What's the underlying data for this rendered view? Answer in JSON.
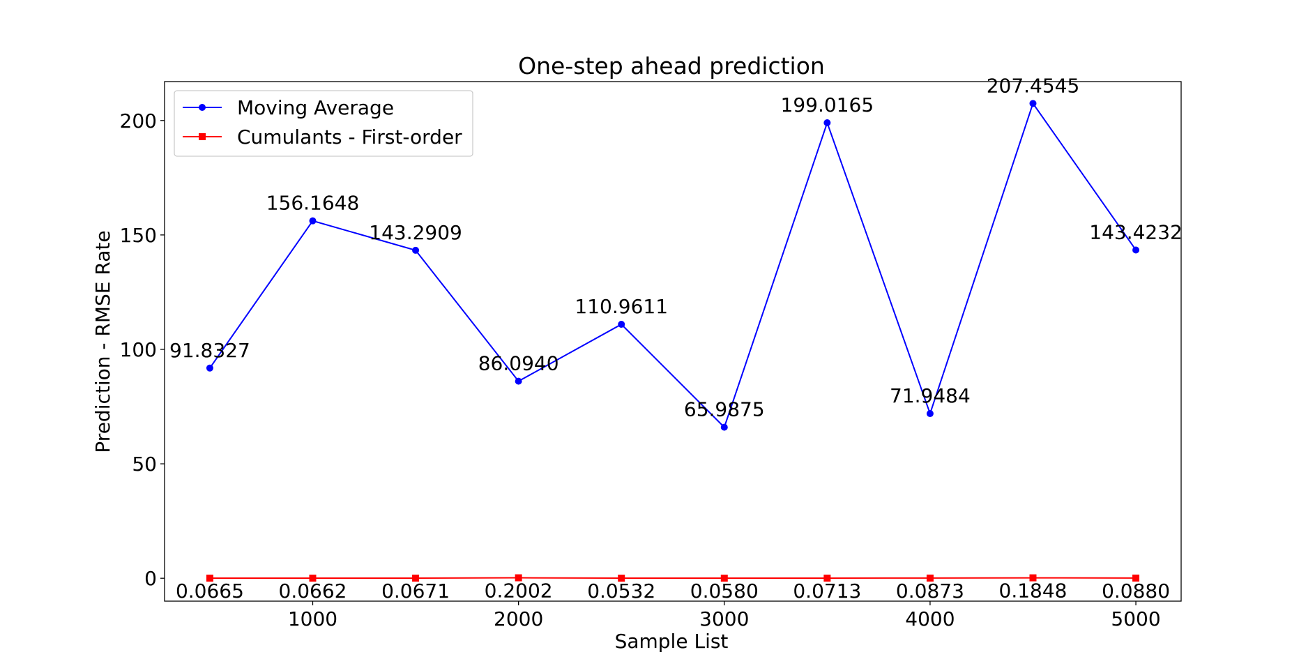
{
  "chart_data": {
    "type": "line",
    "title": "One-step ahead prediction",
    "xlabel": "Sample List",
    "ylabel": "Prediction - RMSE Rate",
    "x": [
      500,
      1000,
      1500,
      2000,
      2500,
      3000,
      3500,
      4000,
      4500,
      5000
    ],
    "xlim": [
      280,
      5220
    ],
    "ylim": [
      -10,
      217
    ],
    "x_ticks": [
      1000,
      2000,
      3000,
      4000,
      5000
    ],
    "y_ticks": [
      0,
      50,
      100,
      150,
      200
    ],
    "grid": false,
    "legend_position": "top-left",
    "series": [
      {
        "name": "Moving Average",
        "color": "#0000ff",
        "marker": "circle",
        "values": [
          91.8327,
          156.1648,
          143.2909,
          86.094,
          110.9611,
          65.9875,
          199.0165,
          71.9484,
          207.4545,
          143.4232
        ],
        "labels": [
          "91.8327",
          "156.1648",
          "143.2909",
          "86.0940",
          "110.9611",
          "65.9875",
          "199.0165",
          "71.9484",
          "207.4545",
          "143.4232"
        ]
      },
      {
        "name": "Cumulants - First-order",
        "color": "#ff0000",
        "marker": "square",
        "values": [
          0.0665,
          0.0662,
          0.0671,
          0.2002,
          0.0532,
          0.058,
          0.0713,
          0.0873,
          0.1848,
          0.088
        ],
        "labels": [
          "0.0665",
          "0.0662",
          "0.0671",
          "0.2002",
          "0.0532",
          "0.0580",
          "0.0713",
          "0.0873",
          "0.1848",
          "0.0880"
        ]
      }
    ]
  }
}
